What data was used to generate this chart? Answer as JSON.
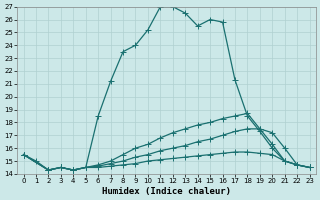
{
  "xlabel": "Humidex (Indice chaleur)",
  "ylabel": "",
  "xlim": [
    -0.5,
    23.5
  ],
  "ylim": [
    14,
    27
  ],
  "xticks": [
    0,
    1,
    2,
    3,
    4,
    5,
    6,
    7,
    8,
    9,
    10,
    11,
    12,
    13,
    14,
    15,
    16,
    17,
    18,
    19,
    20,
    21,
    22,
    23
  ],
  "yticks": [
    14,
    15,
    16,
    17,
    18,
    19,
    20,
    21,
    22,
    23,
    24,
    25,
    26,
    27
  ],
  "bg_color": "#cce8e8",
  "line_color": "#1a7070",
  "grid_color": "#b0d0d0",
  "line1_x": [
    0,
    1,
    2,
    3,
    4,
    5,
    6,
    7,
    8,
    9,
    10,
    11,
    12,
    13,
    14,
    15,
    16,
    17,
    18,
    19,
    20,
    21,
    22,
    23
  ],
  "line1_y": [
    15.5,
    15.0,
    14.3,
    14.5,
    14.3,
    14.5,
    18.5,
    21.2,
    23.5,
    24.0,
    25.2,
    27.0,
    27.0,
    26.5,
    25.5,
    26.0,
    25.8,
    21.3,
    18.5,
    17.3,
    16.0,
    15.0,
    14.7,
    14.5
  ],
  "line2_x": [
    0,
    2,
    3,
    4,
    5,
    6,
    7,
    8,
    9,
    10,
    11,
    12,
    13,
    14,
    15,
    16,
    17,
    18,
    19,
    20,
    21,
    22,
    23
  ],
  "line2_y": [
    15.5,
    14.3,
    14.5,
    14.3,
    14.5,
    14.7,
    15.0,
    15.5,
    16.0,
    16.3,
    16.8,
    17.2,
    17.5,
    17.8,
    18.0,
    18.3,
    18.5,
    18.7,
    17.5,
    17.2,
    16.0,
    14.7,
    14.5
  ],
  "line3_x": [
    0,
    2,
    3,
    4,
    5,
    6,
    7,
    8,
    9,
    10,
    11,
    12,
    13,
    14,
    15,
    16,
    17,
    18,
    19,
    20,
    21,
    22,
    23
  ],
  "line3_y": [
    15.5,
    14.3,
    14.5,
    14.3,
    14.5,
    14.6,
    14.8,
    15.0,
    15.3,
    15.5,
    15.8,
    16.0,
    16.2,
    16.5,
    16.7,
    17.0,
    17.3,
    17.5,
    17.5,
    16.3,
    15.0,
    14.7,
    14.5
  ],
  "line4_x": [
    0,
    2,
    3,
    4,
    5,
    6,
    7,
    8,
    9,
    10,
    11,
    12,
    13,
    14,
    15,
    16,
    17,
    18,
    19,
    20,
    21,
    22,
    23
  ],
  "line4_y": [
    15.5,
    14.3,
    14.5,
    14.3,
    14.5,
    14.5,
    14.6,
    14.7,
    14.8,
    15.0,
    15.1,
    15.2,
    15.3,
    15.4,
    15.5,
    15.6,
    15.7,
    15.7,
    15.6,
    15.5,
    15.0,
    14.7,
    14.5
  ]
}
